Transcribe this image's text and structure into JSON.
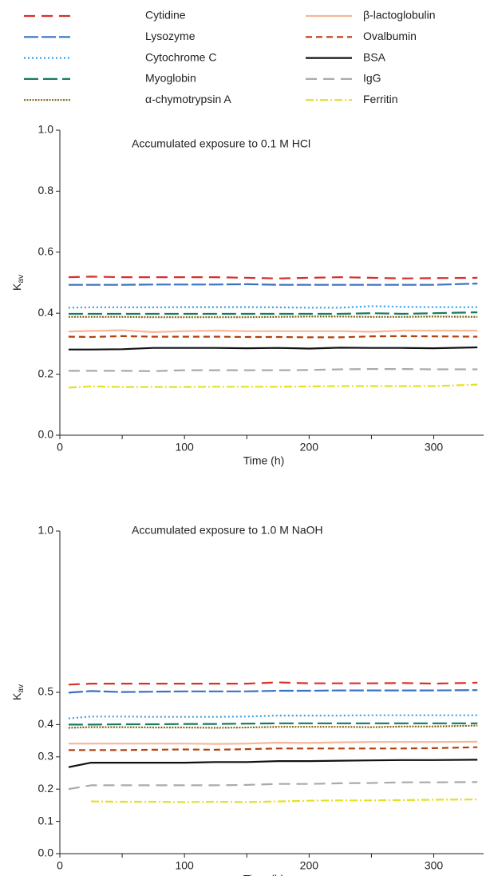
{
  "chart_data": [
    {
      "type": "line",
      "title": "Accumulated exposure to 0.1 M HCl",
      "xlabel": "Time (h)",
      "ylabel": "K",
      "ylabel_subscript": "av",
      "xlim": [
        0,
        340
      ],
      "ylim": [
        0,
        1.0
      ],
      "xticks": [
        0,
        100,
        200,
        300
      ],
      "xminorticks": [
        50,
        150,
        250
      ],
      "yticks": [
        {
          "value": 0,
          "label": "0.0"
        },
        0.2,
        0.4,
        0.6,
        0.8,
        {
          "value": 1,
          "label": "1.0"
        }
      ],
      "x": [
        7,
        25,
        50,
        75,
        100,
        125,
        150,
        175,
        200,
        225,
        250,
        275,
        300,
        335
      ],
      "series": [
        {
          "name": "Cytidine",
          "color": "#d8312a",
          "dash": "14 8",
          "values": [
            0.518,
            0.52,
            0.518,
            0.518,
            0.518,
            0.518,
            0.516,
            0.514,
            0.516,
            0.518,
            0.516,
            0.514,
            0.515,
            0.516
          ]
        },
        {
          "name": "Lysozyme",
          "color": "#3a72c0",
          "dash": "18 4",
          "values": [
            0.493,
            0.493,
            0.493,
            0.494,
            0.494,
            0.494,
            0.495,
            0.493,
            0.493,
            0.493,
            0.493,
            0.493,
            0.493,
            0.497
          ]
        },
        {
          "name": "Cytochrome C",
          "color": "#3aa0e8",
          "dash": "2 3",
          "values": [
            0.418,
            0.419,
            0.419,
            0.419,
            0.42,
            0.42,
            0.42,
            0.419,
            0.418,
            0.418,
            0.423,
            0.421,
            0.42,
            0.42
          ]
        },
        {
          "name": "Myoglobin",
          "color": "#167a64",
          "dash": "18 6",
          "values": [
            0.398,
            0.398,
            0.398,
            0.398,
            0.398,
            0.398,
            0.398,
            0.398,
            0.398,
            0.398,
            0.4,
            0.398,
            0.4,
            0.403
          ]
        },
        {
          "name": "α-chymotrypsin A",
          "color": "#7f6512",
          "dash": "2 1.5",
          "values": [
            0.388,
            0.388,
            0.388,
            0.387,
            0.387,
            0.387,
            0.387,
            0.388,
            0.389,
            0.389,
            0.388,
            0.388,
            0.389,
            0.388
          ]
        },
        {
          "name": "β-lactoglobulin",
          "color": "#f6b797",
          "dash": "none",
          "values": [
            0.34,
            0.342,
            0.344,
            0.338,
            0.341,
            0.343,
            0.341,
            0.341,
            0.341,
            0.341,
            0.339,
            0.343,
            0.343,
            0.343
          ]
        },
        {
          "name": "Ovalbumin",
          "color": "#b2410e",
          "dash": "8 5",
          "values": [
            0.323,
            0.322,
            0.325,
            0.323,
            0.323,
            0.323,
            0.322,
            0.322,
            0.321,
            0.321,
            0.324,
            0.325,
            0.324,
            0.323
          ]
        },
        {
          "name": "BSA",
          "color": "#111111",
          "dash": "none",
          "values": [
            0.281,
            0.281,
            0.282,
            0.286,
            0.286,
            0.286,
            0.285,
            0.286,
            0.284,
            0.287,
            0.286,
            0.286,
            0.285,
            0.288
          ]
        },
        {
          "name": "IgG",
          "color": "#aaaaaa",
          "dash": "14 8",
          "values": [
            0.211,
            0.211,
            0.211,
            0.21,
            0.213,
            0.213,
            0.213,
            0.213,
            0.214,
            0.216,
            0.217,
            0.217,
            0.216,
            0.216
          ]
        },
        {
          "name": "Ferritin",
          "color": "#e6e023",
          "dash": "10 3 2 3",
          "values": [
            0.156,
            0.16,
            0.158,
            0.158,
            0.158,
            0.159,
            0.159,
            0.159,
            0.16,
            0.161,
            0.161,
            0.161,
            0.161,
            0.166
          ]
        }
      ]
    },
    {
      "type": "line",
      "title": "Accumulated exposure to 1.0 M NaOH",
      "xlabel": "Time (h)",
      "ylabel": "K",
      "ylabel_subscript": "av",
      "xlim": [
        0,
        340
      ],
      "ylim": [
        0,
        1.0
      ],
      "xticks": [
        0,
        100,
        200,
        300
      ],
      "xminorticks": [
        50,
        150,
        250
      ],
      "yticks": [
        {
          "value": 0,
          "label": "0.0"
        },
        0.1,
        0.2,
        0.3,
        0.4,
        0.5,
        {
          "value": 1,
          "label": "1.0"
        }
      ],
      "x": [
        7,
        25,
        50,
        75,
        100,
        125,
        150,
        175,
        200,
        225,
        250,
        275,
        300,
        335
      ],
      "series": [
        {
          "name": "Cytidine",
          "color": "#d8312a",
          "dash": "14 8",
          "values": [
            0.524,
            0.527,
            0.527,
            0.527,
            0.527,
            0.527,
            0.527,
            0.531,
            0.528,
            0.528,
            0.528,
            0.529,
            0.527,
            0.53
          ]
        },
        {
          "name": "Lysozyme",
          "color": "#3a72c0",
          "dash": "18 4",
          "values": [
            0.499,
            0.504,
            0.501,
            0.502,
            0.503,
            0.503,
            0.503,
            0.505,
            0.505,
            0.506,
            0.506,
            0.506,
            0.506,
            0.507
          ]
        },
        {
          "name": "Cytochrome C",
          "color": "#3aa0e8",
          "dash": "2 3",
          "values": [
            0.419,
            0.425,
            0.425,
            0.424,
            0.424,
            0.424,
            0.425,
            0.428,
            0.428,
            0.428,
            0.429,
            0.429,
            0.429,
            0.429
          ]
        },
        {
          "name": "Myoglobin",
          "color": "#167a64",
          "dash": "18 6",
          "values": [
            0.4,
            0.4,
            0.401,
            0.401,
            0.402,
            0.402,
            0.403,
            0.404,
            0.404,
            0.404,
            0.404,
            0.404,
            0.404,
            0.404
          ]
        },
        {
          "name": "α-chymotrypsin A",
          "color": "#7f6512",
          "dash": "2 1.5",
          "values": [
            0.39,
            0.392,
            0.392,
            0.391,
            0.391,
            0.39,
            0.391,
            0.393,
            0.393,
            0.393,
            0.392,
            0.394,
            0.394,
            0.397
          ]
        },
        {
          "name": "β-lactoglobulin",
          "color": "#f6b797",
          "dash": "none",
          "values": [
            0.341,
            0.341,
            0.341,
            0.341,
            0.341,
            0.34,
            0.341,
            0.344,
            0.343,
            0.345,
            0.346,
            0.346,
            0.346,
            0.347
          ]
        },
        {
          "name": "Ovalbumin",
          "color": "#b2410e",
          "dash": "8 5",
          "values": [
            0.321,
            0.321,
            0.321,
            0.322,
            0.323,
            0.322,
            0.324,
            0.326,
            0.326,
            0.326,
            0.326,
            0.326,
            0.327,
            0.33
          ]
        },
        {
          "name": "BSA",
          "color": "#111111",
          "dash": "none",
          "values": [
            0.268,
            0.282,
            0.282,
            0.282,
            0.282,
            0.284,
            0.284,
            0.287,
            0.287,
            0.288,
            0.289,
            0.29,
            0.29,
            0.291
          ]
        },
        {
          "name": "IgG",
          "color": "#aaaaaa",
          "dash": "14 8",
          "values": [
            0.2,
            0.212,
            0.212,
            0.212,
            0.212,
            0.212,
            0.213,
            0.216,
            0.216,
            0.218,
            0.219,
            0.221,
            0.221,
            0.222
          ]
        },
        {
          "name": "Ferritin",
          "color": "#e6e023",
          "dash": "10 3 2 3",
          "values": [
            null,
            0.162,
            0.161,
            0.161,
            0.16,
            0.161,
            0.16,
            0.162,
            0.164,
            0.165,
            0.165,
            0.166,
            0.167,
            0.168
          ]
        }
      ]
    }
  ]
}
